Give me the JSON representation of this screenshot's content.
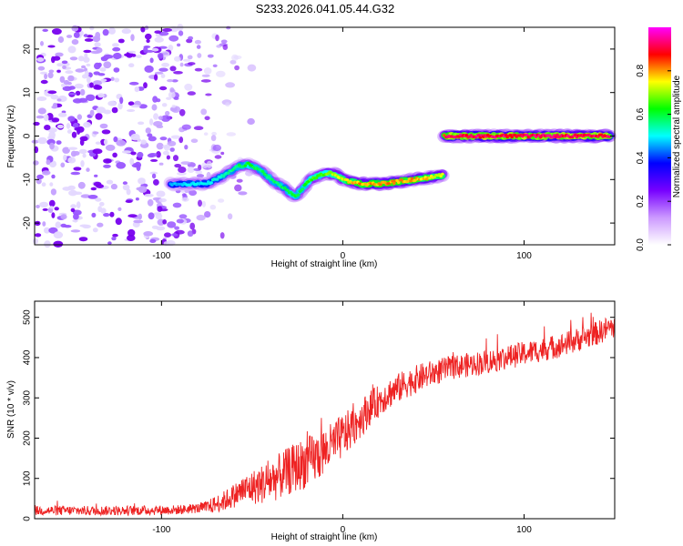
{
  "title": "S233.2026.041.05.44.G32",
  "chart_data": [
    {
      "type": "heatmap",
      "title": "S233.2026.041.05.44.G32",
      "xlabel": "Height of straight line (km)",
      "ylabel": "Frequency (Hz)",
      "xlim": [
        -170,
        150
      ],
      "ylim": [
        -25,
        25
      ],
      "x_ticks": [
        -100,
        0,
        100
      ],
      "y_ticks": [
        -20,
        -10,
        0,
        10,
        20
      ],
      "colorbar": {
        "label": "Normalized spectral amplitude",
        "range": [
          0,
          1
        ],
        "ticks": [
          0.0,
          0.2,
          0.4,
          0.6,
          0.8
        ],
        "tick_labels": [
          "0.0",
          "0.2",
          "0.4",
          "0.6",
          "0.8"
        ],
        "colors": [
          "#ffffff",
          "#cc99ff",
          "#7700ff",
          "#0000ff",
          "#00ffff",
          "#00ff00",
          "#ffff00",
          "#ff0000",
          "#ff00ff"
        ]
      },
      "ridge": {
        "x": [
          -95,
          -85,
          -75,
          -65,
          -58,
          -52,
          -45,
          -38,
          -32,
          -26,
          -22,
          -18,
          -12,
          -8,
          -3,
          0,
          5,
          10,
          20,
          30,
          40,
          48,
          55,
          57,
          60,
          80,
          100,
          120,
          140,
          147
        ],
        "y": [
          -11,
          -11,
          -11,
          -9,
          -7,
          -6.5,
          -8,
          -10.5,
          -12,
          -14,
          -12,
          -10,
          -9,
          -8.5,
          -9,
          -10,
          -10.5,
          -11,
          -11,
          -10.5,
          -10,
          -9.5,
          -9,
          0,
          0,
          0,
          0,
          0,
          0,
          0
        ],
        "amplitude": [
          0.35,
          0.4,
          0.4,
          0.45,
          0.5,
          0.55,
          0.5,
          0.5,
          0.5,
          0.55,
          0.5,
          0.6,
          0.6,
          0.65,
          0.7,
          0.7,
          0.75,
          0.8,
          0.8,
          0.8,
          0.8,
          0.75,
          0.7,
          0.9,
          0.95,
          0.95,
          0.95,
          0.95,
          0.95,
          0.95
        ]
      },
      "noise_region_x": [
        -170,
        -60
      ]
    },
    {
      "type": "line",
      "xlabel": "Height of straight line (km)",
      "ylabel": "SNR (10 * v/v)",
      "xlim": [
        -170,
        150
      ],
      "ylim": [
        0,
        540
      ],
      "x_ticks": [
        -100,
        0,
        100
      ],
      "y_ticks": [
        0,
        100,
        200,
        300,
        400,
        500
      ],
      "color": "#ee2222",
      "trend": {
        "x": [
          -170,
          -120,
          -90,
          -75,
          -65,
          -55,
          -45,
          -35,
          -25,
          -15,
          -5,
          5,
          15,
          25,
          35,
          45,
          60,
          80,
          100,
          120,
          140,
          150
        ],
        "y": [
          20,
          20,
          22,
          28,
          45,
          70,
          85,
          105,
          130,
          150,
          185,
          225,
          275,
          310,
          335,
          355,
          375,
          390,
          410,
          430,
          460,
          480
        ]
      },
      "noise_amplitude": {
        "x": [
          -170,
          -80,
          -60,
          -40,
          -20,
          0,
          20,
          60,
          150
        ],
        "y": [
          12,
          12,
          30,
          55,
          65,
          55,
          40,
          30,
          30
        ]
      }
    }
  ]
}
